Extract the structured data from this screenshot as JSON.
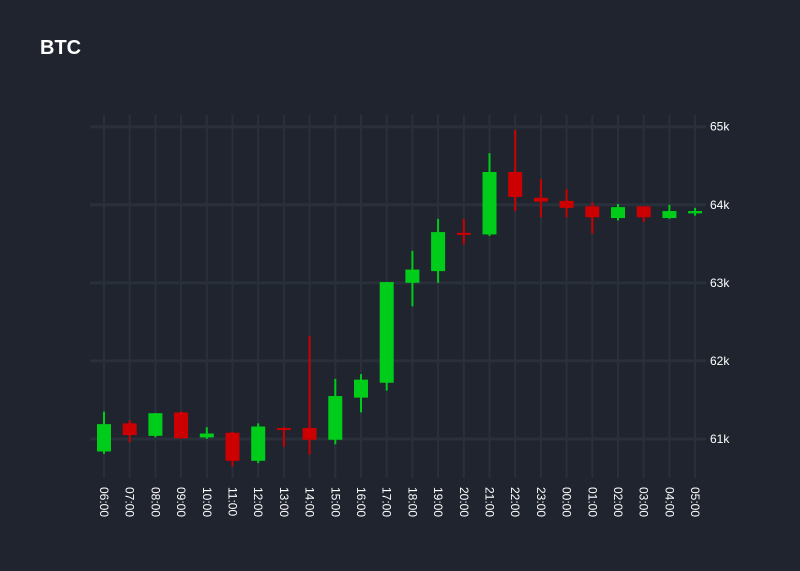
{
  "colors": {
    "background": "#1f242e",
    "grid": "#2a303b",
    "up": "#00cc1a",
    "down": "#cc0000",
    "text": "#ffffff"
  },
  "chart_data": {
    "type": "candlestick",
    "title": "BTC",
    "xlabel": "",
    "ylabel": "",
    "y_axis_position": "right",
    "x_label_orientation": "vertical",
    "grid": true,
    "ylim": [
      60500,
      65150
    ],
    "y_ticks": [
      61000,
      62000,
      63000,
      64000,
      65000
    ],
    "y_tick_labels": [
      "61k",
      "62k",
      "63k",
      "64k",
      "65k"
    ],
    "categories": [
      "06:00",
      "07:00",
      "08:00",
      "09:00",
      "10:00",
      "11:00",
      "12:00",
      "13:00",
      "14:00",
      "15:00",
      "16:00",
      "17:00",
      "18:00",
      "19:00",
      "20:00",
      "21:00",
      "22:00",
      "23:00",
      "00:00",
      "01:00",
      "02:00",
      "03:00",
      "04:00",
      "05:00"
    ],
    "series": [
      {
        "open": [
          60840,
          61200,
          61040,
          61340,
          61020,
          61080,
          60720,
          61140,
          61140,
          60990,
          61530,
          61720,
          63000,
          63150,
          63640,
          63620,
          64420,
          64090,
          64050,
          63980,
          63830,
          63980,
          63830,
          63890
        ],
        "high": [
          61350,
          61240,
          61330,
          61350,
          61150,
          61090,
          61200,
          61150,
          62320,
          61770,
          61830,
          63000,
          63410,
          63820,
          63820,
          64660,
          64960,
          64330,
          64200,
          64030,
          64010,
          63980,
          64000,
          63960
        ],
        "low": [
          60810,
          60960,
          61020,
          61000,
          61000,
          60650,
          60690,
          60900,
          60800,
          60930,
          61340,
          61620,
          62700,
          63000,
          63490,
          63600,
          63920,
          63840,
          63840,
          63630,
          63800,
          63780,
          63820,
          63860
        ],
        "close": [
          61190,
          61050,
          61330,
          61010,
          61070,
          60720,
          61160,
          61120,
          60990,
          61550,
          61760,
          63010,
          63170,
          63650,
          63620,
          64420,
          64100,
          64040,
          63960,
          63840,
          63970,
          63840,
          63920,
          63920
        ]
      }
    ]
  }
}
